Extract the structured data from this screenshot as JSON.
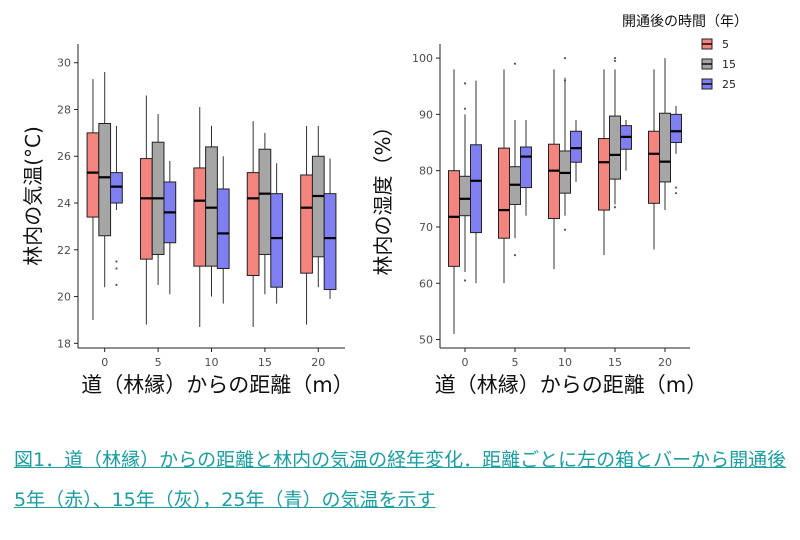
{
  "caption": "図1．道（林縁）からの距離と林内の気温の経年変化．距離ごとに左の箱とバーから開通後5年（赤）、15年（灰），25年（青）の気温を示す",
  "legend": {
    "title": "開通後の時間（年）",
    "entries": [
      "5",
      "15",
      "25"
    ]
  },
  "colors": {
    "5": "#f4847e",
    "15": "#a6a6a6",
    "25": "#7f7ff2"
  },
  "chart_data": [
    {
      "type": "boxplot",
      "ylabel": "林内の気温(°C)",
      "xlabel": "道（林縁）からの距離（m）",
      "categories": [
        "0",
        "5",
        "10",
        "15",
        "20"
      ],
      "ylim": [
        17.8,
        30.8
      ],
      "yticks": [
        18,
        20,
        22,
        24,
        26,
        28,
        30
      ],
      "series": [
        {
          "name": "5",
          "boxes": [
            {
              "wl": 19.0,
              "q1": 23.4,
              "med": 25.3,
              "q3": 27.0,
              "wh": 29.3,
              "out": []
            },
            {
              "wl": 18.8,
              "q1": 21.6,
              "med": 24.2,
              "q3": 25.9,
              "wh": 28.6,
              "out": []
            },
            {
              "wl": 18.7,
              "q1": 21.3,
              "med": 24.1,
              "q3": 25.5,
              "wh": 28.1,
              "out": []
            },
            {
              "wl": 18.7,
              "q1": 20.9,
              "med": 24.2,
              "q3": 25.3,
              "wh": 27.5,
              "out": []
            },
            {
              "wl": 18.8,
              "q1": 21.0,
              "med": 23.8,
              "q3": 25.2,
              "wh": 27.3,
              "out": []
            }
          ]
        },
        {
          "name": "15",
          "boxes": [
            {
              "wl": 20.4,
              "q1": 22.6,
              "med": 25.1,
              "q3": 27.4,
              "wh": 29.6,
              "out": []
            },
            {
              "wl": 20.5,
              "q1": 21.8,
              "med": 24.2,
              "q3": 26.6,
              "wh": 27.8,
              "out": []
            },
            {
              "wl": 20.0,
              "q1": 21.3,
              "med": 23.8,
              "q3": 26.4,
              "wh": 27.3,
              "out": []
            },
            {
              "wl": 20.1,
              "q1": 21.8,
              "med": 24.4,
              "q3": 26.3,
              "wh": 27.0,
              "out": []
            },
            {
              "wl": 20.4,
              "q1": 21.7,
              "med": 24.3,
              "q3": 26.0,
              "wh": 27.3,
              "out": []
            }
          ]
        },
        {
          "name": "25",
          "boxes": [
            {
              "wl": 23.7,
              "q1": 24.0,
              "med": 24.7,
              "q3": 25.3,
              "wh": 27.3,
              "out": [
                21.5,
                21.2,
                20.5
              ]
            },
            {
              "wl": 20.1,
              "q1": 22.3,
              "med": 23.6,
              "q3": 24.9,
              "wh": 25.8,
              "out": []
            },
            {
              "wl": 19.7,
              "q1": 21.2,
              "med": 22.7,
              "q3": 24.6,
              "wh": 26.0,
              "out": []
            },
            {
              "wl": 19.7,
              "q1": 20.4,
              "med": 22.5,
              "q3": 24.4,
              "wh": 25.7,
              "out": []
            },
            {
              "wl": 19.9,
              "q1": 20.3,
              "med": 22.5,
              "q3": 24.4,
              "wh": 25.9,
              "out": []
            }
          ]
        }
      ]
    },
    {
      "type": "boxplot",
      "ylabel": "林内の湿度（%）",
      "xlabel": "道（林縁）からの距離（m）",
      "categories": [
        "0",
        "5",
        "10",
        "15",
        "20"
      ],
      "ylim": [
        48.5,
        102.5
      ],
      "yticks": [
        50,
        60,
        70,
        80,
        90,
        100
      ],
      "series": [
        {
          "name": "5",
          "boxes": [
            {
              "wl": 51.0,
              "q1": 63.0,
              "med": 71.8,
              "q3": 80.0,
              "wh": 98.0,
              "out": []
            },
            {
              "wl": 60.0,
              "q1": 68.0,
              "med": 73.0,
              "q3": 84.0,
              "wh": 98.0,
              "out": []
            },
            {
              "wl": 62.5,
              "q1": 71.5,
              "med": 80.0,
              "q3": 84.7,
              "wh": 98.0,
              "out": []
            },
            {
              "wl": 65.0,
              "q1": 73.0,
              "med": 81.5,
              "q3": 85.7,
              "wh": 98.0,
              "out": []
            },
            {
              "wl": 66.0,
              "q1": 74.2,
              "med": 83.0,
              "q3": 87.0,
              "wh": 98.0,
              "out": []
            }
          ]
        },
        {
          "name": "15",
          "boxes": [
            {
              "wl": 62.0,
              "q1": 72.0,
              "med": 75.0,
              "q3": 79.0,
              "wh": 90.0,
              "out": [
                95.5,
                91.0,
                60.5
              ]
            },
            {
              "wl": 68.0,
              "q1": 74.0,
              "med": 77.5,
              "q3": 80.7,
              "wh": 89.0,
              "out": [
                99.0,
                65.0
              ]
            },
            {
              "wl": 72.0,
              "q1": 76.0,
              "med": 79.6,
              "q3": 83.5,
              "wh": 96.5,
              "out": [
                100.0,
                96.0,
                69.5
              ]
            },
            {
              "wl": 74.0,
              "q1": 78.5,
              "med": 82.8,
              "q3": 89.7,
              "wh": 98.0,
              "out": [
                100.0,
                99.5,
                73.5
              ]
            },
            {
              "wl": 73.0,
              "q1": 78.0,
              "med": 81.6,
              "q3": 90.2,
              "wh": 100.0,
              "out": []
            }
          ]
        },
        {
          "name": "25",
          "boxes": [
            {
              "wl": 60.0,
              "q1": 69.0,
              "med": 78.2,
              "q3": 84.6,
              "wh": 96.0,
              "out": []
            },
            {
              "wl": 72.0,
              "q1": 77.0,
              "med": 82.5,
              "q3": 84.2,
              "wh": 89.0,
              "out": []
            },
            {
              "wl": 78.0,
              "q1": 81.5,
              "med": 84.0,
              "q3": 87.0,
              "wh": 89.0,
              "out": []
            },
            {
              "wl": 80.0,
              "q1": 83.8,
              "med": 86.0,
              "q3": 88.0,
              "wh": 89.0,
              "out": []
            },
            {
              "wl": 83.0,
              "q1": 85.0,
              "med": 87.0,
              "q3": 90.0,
              "wh": 91.5,
              "out": [
                77.0,
                76.0
              ]
            }
          ]
        }
      ]
    }
  ]
}
